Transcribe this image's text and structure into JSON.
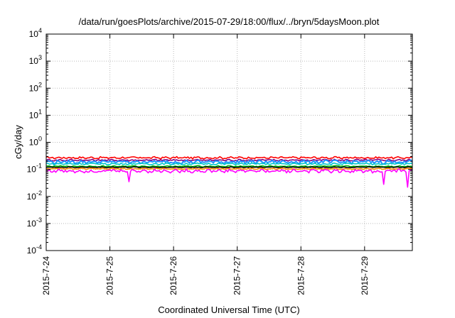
{
  "chart_data": {
    "type": "line",
    "title": "/data/run/goesPlots/archive/2015-07-29/18:00/flux/../bryn/5daysMoon.plot",
    "xlabel": "Coordinated Universal Time (UTC)",
    "ylabel": "cGy/day",
    "y_scale": "log",
    "ylim": [
      0.0001,
      10000
    ],
    "y_ticks": [
      {
        "base": "10",
        "exp": "-4",
        "value": 0.0001
      },
      {
        "base": "10",
        "exp": "-3",
        "value": 0.001
      },
      {
        "base": "10",
        "exp": "-2",
        "value": 0.01
      },
      {
        "base": "10",
        "exp": "-1",
        "value": 0.1
      },
      {
        "base": "10",
        "exp": "0",
        "value": 1
      },
      {
        "base": "10",
        "exp": "1",
        "value": 10
      },
      {
        "base": "10",
        "exp": "2",
        "value": 100
      },
      {
        "base": "10",
        "exp": "3",
        "value": 1000
      },
      {
        "base": "10",
        "exp": "4",
        "value": 10000
      }
    ],
    "xlim": [
      "2015-07-24T00:00",
      "2015-07-29T18:00"
    ],
    "x_ticks": [
      "2015-7-24",
      "2015-7-25",
      "2015-7-26",
      "2015-7-27",
      "2015-7-28",
      "2015-7-29"
    ],
    "grid": true,
    "legend": "none",
    "series": [
      {
        "color": "#ff0000",
        "level": 0.27,
        "noise": 0.07
      },
      {
        "color": "#800080",
        "level": 0.22,
        "noise": 0.06
      },
      {
        "color": "#1e90ff",
        "level": 0.19,
        "noise": 0.12
      },
      {
        "color": "#00c8c8",
        "level": 0.16,
        "noise": 0.06
      },
      {
        "color": "#00b400",
        "level": 0.13,
        "noise": 0.04
      },
      {
        "color": "#000000",
        "level": 0.12,
        "noise": 0.03
      },
      {
        "color": "#ff8c00",
        "level": 0.105,
        "noise": 0.04
      },
      {
        "color": "#ff00ff",
        "level": 0.088,
        "noise": 0.12
      }
    ],
    "dips": [
      {
        "x": "2015-07-25T07:00",
        "y": 0.035
      },
      {
        "x": "2015-07-29T07:00",
        "y": 0.028
      },
      {
        "x": "2015-07-29T16:00",
        "y": 0.022
      }
    ]
  }
}
